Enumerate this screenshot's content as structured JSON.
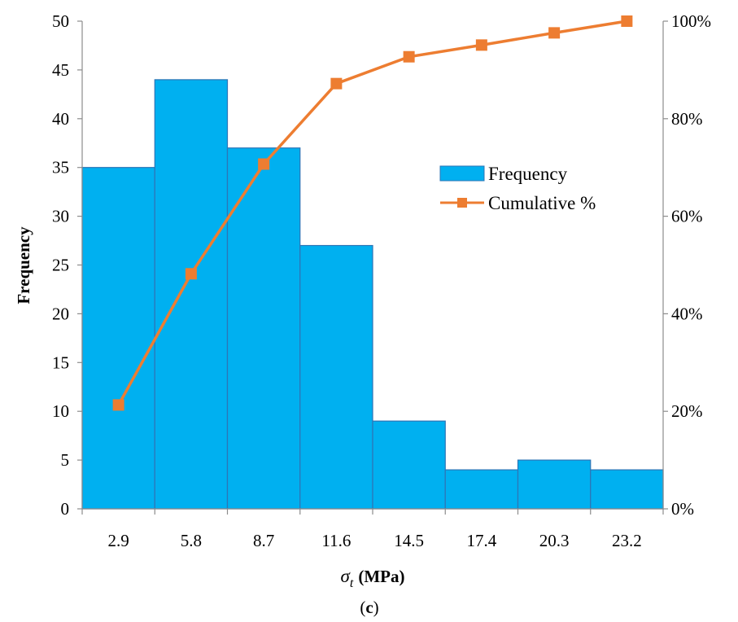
{
  "chart_data": {
    "type": "bar",
    "categories": [
      "2.9",
      "5.8",
      "8.7",
      "11.6",
      "14.5",
      "17.4",
      "20.3",
      "23.2"
    ],
    "series": [
      {
        "name": "Frequency",
        "type": "bar",
        "axis": "left",
        "values": [
          35,
          44,
          37,
          27,
          9,
          4,
          5,
          4
        ],
        "color": "#00B0F0"
      },
      {
        "name": "Cumulative %",
        "type": "line",
        "axis": "right",
        "values": [
          21.3,
          48.2,
          70.7,
          87.2,
          92.7,
          95.1,
          97.6,
          100
        ],
        "color": "#ED7D31"
      }
    ],
    "ylabel": "Frequency",
    "xlabel_symbol": "σ",
    "xlabel_subscript": "t",
    "xlabel_unit": "(MPa)",
    "ylim": [
      0,
      50
    ],
    "yticks": [
      "0",
      "5",
      "10",
      "15",
      "20",
      "25",
      "30",
      "35",
      "40",
      "45",
      "50"
    ],
    "y2lim": [
      0,
      100
    ],
    "y2ticks": [
      "0%",
      "20%",
      "40%",
      "60%",
      "80%",
      "100%"
    ],
    "legend_position": "center-right",
    "grid": false
  },
  "caption": {
    "open": "(",
    "letter": "c",
    "close": ")"
  }
}
